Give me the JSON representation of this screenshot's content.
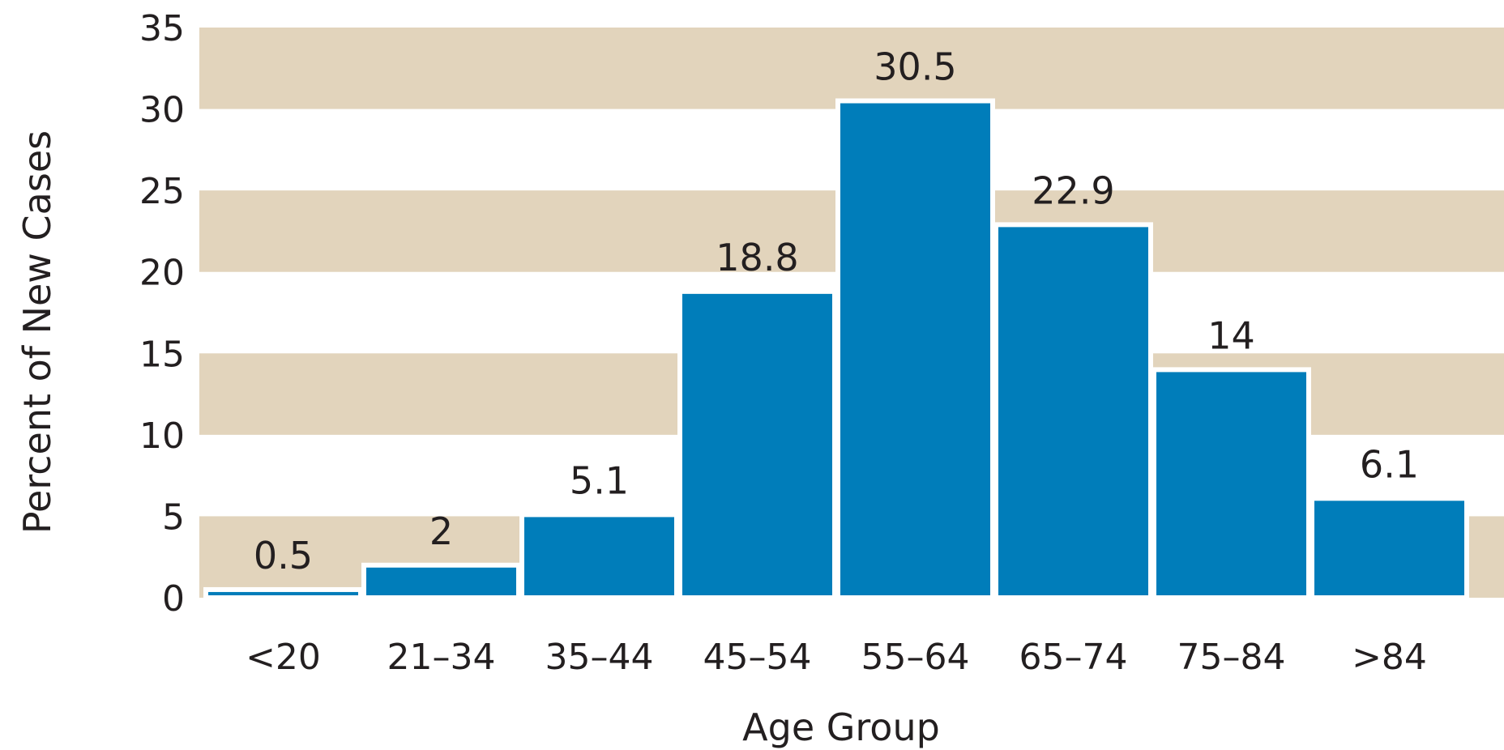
{
  "chart_data": {
    "type": "bar",
    "title": "",
    "xlabel": "Age Group",
    "ylabel": "Percent of New Cases",
    "categories": [
      "<20",
      "21–34",
      "35–44",
      "45–54",
      "55–64",
      "65–74",
      "75–84",
      ">84"
    ],
    "values": [
      0.5,
      2,
      5.1,
      18.8,
      30.5,
      22.9,
      14,
      6.1
    ],
    "value_labels": [
      "0.5",
      "2",
      "5.1",
      "18.8",
      "30.5",
      "22.9",
      "14",
      "6.1"
    ],
    "ylim": [
      0,
      35
    ],
    "yticks": [
      "0",
      "5",
      "10",
      "15",
      "20",
      "25",
      "30",
      "35"
    ],
    "grid": "alternating horizontal bands",
    "legend": "none",
    "colors": {
      "bar": "#007dba",
      "band": "#e2d4bc",
      "bar_outline": "#ffffff",
      "text": "#231f20"
    }
  }
}
